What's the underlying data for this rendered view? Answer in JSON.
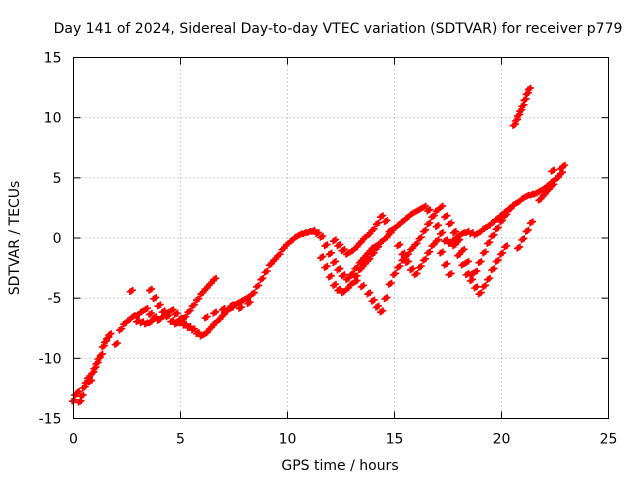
{
  "chart_data": {
    "type": "scatter",
    "title": "Day 141 of 2024, Sidereal Day-to-day VTEC variation (SDTVAR) for receiver p779",
    "xlabel": "GPS time / hours",
    "ylabel": "SDTVAR / TECUs",
    "xlim": [
      0,
      25
    ],
    "ylim": [
      -15,
      15
    ],
    "xticks": [
      "0",
      "5",
      "10",
      "15",
      "20",
      "25"
    ],
    "yticks": [
      "-15",
      "-10",
      "-5",
      "0",
      "5",
      "10",
      "15"
    ],
    "grid": true,
    "legend": "none",
    "marker": "plus",
    "color": "#ff0000",
    "series": [
      {
        "values": [
          [
            0.0,
            -13.5
          ],
          [
            0.1,
            -13.0
          ],
          [
            0.2,
            -12.8
          ],
          [
            0.3,
            -13.6
          ],
          [
            0.4,
            -13.1
          ],
          [
            0.5,
            -12.4
          ],
          [
            0.6,
            -12.0
          ],
          [
            0.7,
            -11.6
          ],
          [
            0.8,
            -11.9
          ],
          [
            0.9,
            -11.2
          ],
          [
            1.0,
            -10.8
          ],
          [
            1.1,
            -10.4
          ],
          [
            1.2,
            -10.0
          ],
          [
            1.3,
            -9.7
          ],
          [
            1.4,
            -9.0
          ],
          [
            1.5,
            -8.6
          ],
          [
            1.6,
            -8.3
          ],
          [
            1.7,
            -8.0
          ],
          [
            2.0,
            -8.8
          ],
          [
            2.2,
            -7.6
          ],
          [
            2.4,
            -7.1
          ],
          [
            2.6,
            -6.8
          ],
          [
            2.7,
            -4.4
          ],
          [
            2.8,
            -6.5
          ],
          [
            3.0,
            -6.4
          ],
          [
            3.2,
            -6.1
          ],
          [
            3.4,
            -5.9
          ],
          [
            3.6,
            -6.3
          ],
          [
            3.8,
            -6.6
          ],
          [
            4.0,
            -6.8
          ],
          [
            4.2,
            -6.5
          ],
          [
            4.4,
            -6.2
          ],
          [
            4.6,
            -6.0
          ],
          [
            4.8,
            -6.3
          ],
          [
            5.0,
            -6.7
          ],
          [
            5.2,
            -7.2
          ],
          [
            5.4,
            -7.4
          ],
          [
            5.6,
            -7.6
          ],
          [
            5.8,
            -7.9
          ],
          [
            6.0,
            -8.1
          ],
          [
            6.2,
            -7.9
          ],
          [
            6.4,
            -7.5
          ],
          [
            6.6,
            -7.1
          ],
          [
            6.8,
            -6.8
          ],
          [
            7.0,
            -6.4
          ],
          [
            7.2,
            -6.0
          ],
          [
            7.4,
            -5.8
          ],
          [
            7.6,
            -5.5
          ],
          [
            7.8,
            -5.3
          ],
          [
            8.0,
            -5.1
          ],
          [
            8.2,
            -4.9
          ],
          [
            8.4,
            -4.6
          ],
          [
            8.6,
            -4.0
          ],
          [
            8.8,
            -3.4
          ],
          [
            9.0,
            -2.8
          ],
          [
            9.2,
            -2.2
          ],
          [
            9.4,
            -1.8
          ],
          [
            9.6,
            -1.4
          ],
          [
            9.8,
            -0.9
          ],
          [
            10.0,
            -0.5
          ],
          [
            10.2,
            -0.2
          ],
          [
            10.4,
            0.1
          ],
          [
            10.6,
            0.3
          ],
          [
            10.8,
            0.4
          ],
          [
            11.0,
            0.5
          ],
          [
            11.2,
            0.6
          ],
          [
            11.4,
            0.4
          ],
          [
            11.6,
            0.1
          ],
          [
            11.8,
            -0.6
          ],
          [
            12.0,
            -1.3
          ],
          [
            12.2,
            -2.0
          ],
          [
            12.4,
            -2.6
          ],
          [
            12.6,
            -3.1
          ],
          [
            12.8,
            -3.4
          ],
          [
            13.0,
            -3.0
          ],
          [
            13.2,
            -2.5
          ],
          [
            13.4,
            -2.0
          ],
          [
            13.6,
            -1.6
          ],
          [
            13.8,
            -1.2
          ],
          [
            14.0,
            -0.8
          ],
          [
            14.2,
            -0.6
          ],
          [
            14.4,
            -0.3
          ],
          [
            14.6,
            0.0
          ],
          [
            14.8,
            0.4
          ],
          [
            15.0,
            0.8
          ],
          [
            15.2,
            1.1
          ],
          [
            15.4,
            1.4
          ],
          [
            15.6,
            1.7
          ],
          [
            15.8,
            2.0
          ],
          [
            16.0,
            2.2
          ],
          [
            16.2,
            2.4
          ],
          [
            16.4,
            2.6
          ],
          [
            16.6,
            2.3
          ],
          [
            16.8,
            1.8
          ],
          [
            17.0,
            1.0
          ],
          [
            17.2,
            0.4
          ],
          [
            17.4,
            -0.2
          ],
          [
            17.6,
            -0.4
          ],
          [
            17.8,
            -0.1
          ],
          [
            18.0,
            0.2
          ],
          [
            18.2,
            0.4
          ],
          [
            18.4,
            0.5
          ],
          [
            18.6,
            0.4
          ],
          [
            18.8,
            0.3
          ],
          [
            19.0,
            0.5
          ],
          [
            19.2,
            0.8
          ],
          [
            19.4,
            1.0
          ],
          [
            19.6,
            1.3
          ],
          [
            19.8,
            1.6
          ],
          [
            20.0,
            1.9
          ],
          [
            20.2,
            2.2
          ],
          [
            20.4,
            2.5
          ],
          [
            20.6,
            2.8
          ],
          [
            20.8,
            3.0
          ],
          [
            21.0,
            3.3
          ],
          [
            21.2,
            3.5
          ],
          [
            21.4,
            3.6
          ],
          [
            21.6,
            3.7
          ],
          [
            21.8,
            3.9
          ],
          [
            22.0,
            4.1
          ],
          [
            22.2,
            4.4
          ],
          [
            22.4,
            4.7
          ],
          [
            22.6,
            5.0
          ],
          [
            22.8,
            5.4
          ]
        ]
      },
      {
        "values": [
          [
            3.6,
            -4.3
          ],
          [
            3.8,
            -5.0
          ],
          [
            4.0,
            -5.6
          ],
          [
            4.2,
            -6.1
          ],
          [
            4.4,
            -6.5
          ],
          [
            4.6,
            -6.9
          ],
          [
            4.8,
            -7.1
          ],
          [
            5.0,
            -7.0
          ],
          [
            5.2,
            -6.6
          ],
          [
            5.4,
            -6.1
          ],
          [
            5.6,
            -5.6
          ],
          [
            5.8,
            -5.1
          ],
          [
            6.0,
            -4.6
          ],
          [
            6.2,
            -4.2
          ],
          [
            6.4,
            -3.8
          ],
          [
            6.6,
            -3.4
          ],
          [
            3.0,
            -6.9
          ],
          [
            3.2,
            -7.0
          ],
          [
            3.4,
            -7.1
          ],
          [
            3.6,
            -7.0
          ],
          [
            6.2,
            -6.6
          ],
          [
            6.6,
            -6.2
          ],
          [
            7.0,
            -5.9
          ],
          [
            7.4,
            -5.6
          ],
          [
            7.8,
            -5.8
          ],
          [
            8.2,
            -5.4
          ]
        ]
      },
      {
        "values": [
          [
            11.6,
            -1.6
          ],
          [
            11.8,
            -2.4
          ],
          [
            12.0,
            -3.2
          ],
          [
            12.2,
            -3.9
          ],
          [
            12.4,
            -4.3
          ],
          [
            12.6,
            -4.5
          ],
          [
            12.8,
            -4.2
          ],
          [
            13.0,
            -3.8
          ],
          [
            13.2,
            -3.2
          ],
          [
            13.4,
            -2.6
          ],
          [
            13.6,
            -2.2
          ],
          [
            13.8,
            -1.8
          ],
          [
            14.0,
            -1.3
          ],
          [
            14.2,
            -0.8
          ],
          [
            14.4,
            -0.3
          ],
          [
            12.2,
            -0.2
          ],
          [
            12.4,
            -0.6
          ],
          [
            12.6,
            -1.0
          ],
          [
            12.8,
            -1.3
          ],
          [
            13.0,
            -1.1
          ],
          [
            13.2,
            -0.8
          ],
          [
            13.4,
            -0.4
          ],
          [
            13.6,
            0.0
          ],
          [
            13.8,
            0.3
          ],
          [
            14.0,
            0.7
          ],
          [
            14.2,
            1.2
          ],
          [
            14.4,
            1.8
          ],
          [
            14.6,
            1.4
          ],
          [
            14.8,
            0.6
          ],
          [
            13.2,
            -3.6
          ],
          [
            13.5,
            -4.0
          ],
          [
            13.8,
            -4.6
          ],
          [
            14.0,
            -5.2
          ],
          [
            14.2,
            -5.7
          ],
          [
            14.4,
            -6.1
          ],
          [
            14.6,
            -5.0
          ],
          [
            14.8,
            -3.8
          ],
          [
            15.0,
            -3.0
          ],
          [
            15.2,
            -2.4
          ],
          [
            15.4,
            -1.8
          ],
          [
            15.6,
            -1.4
          ],
          [
            15.8,
            -0.9
          ],
          [
            16.0,
            -0.5
          ],
          [
            16.2,
            0.0
          ],
          [
            16.4,
            0.6
          ],
          [
            16.6,
            1.2
          ],
          [
            16.8,
            1.8
          ],
          [
            17.0,
            2.3
          ],
          [
            17.2,
            2.6
          ],
          [
            17.4,
            1.8
          ],
          [
            17.6,
            1.2
          ],
          [
            17.8,
            0.5
          ],
          [
            18.0,
            -0.2
          ],
          [
            18.2,
            -1.0
          ],
          [
            18.4,
            -2.0
          ],
          [
            18.6,
            -3.0
          ],
          [
            18.8,
            -4.1
          ],
          [
            19.0,
            -4.6
          ],
          [
            19.2,
            -4.0
          ],
          [
            19.4,
            -3.4
          ],
          [
            19.6,
            -2.6
          ],
          [
            19.8,
            -1.9
          ],
          [
            20.0,
            -1.3
          ],
          [
            20.2,
            -0.7
          ],
          [
            15.2,
            -0.6
          ],
          [
            15.4,
            -1.3
          ],
          [
            15.6,
            -2.0
          ],
          [
            15.8,
            -2.6
          ],
          [
            16.0,
            -3.0
          ],
          [
            16.2,
            -2.4
          ],
          [
            16.4,
            -1.8
          ],
          [
            16.6,
            -1.2
          ],
          [
            16.8,
            -0.6
          ],
          [
            17.0,
            -0.2
          ],
          [
            17.2,
            -1.2
          ],
          [
            17.4,
            -2.2
          ],
          [
            17.6,
            -3.0
          ],
          [
            17.8,
            -0.6
          ],
          [
            18.0,
            -1.4
          ],
          [
            18.2,
            -2.2
          ],
          [
            18.4,
            -3.0
          ],
          [
            18.6,
            -3.5
          ],
          [
            18.8,
            -2.8
          ],
          [
            19.0,
            -2.0
          ],
          [
            19.2,
            -1.2
          ],
          [
            19.4,
            -0.4
          ],
          [
            19.6,
            0.2
          ],
          [
            19.8,
            0.8
          ],
          [
            20.0,
            1.4
          ],
          [
            20.2,
            1.9
          ],
          [
            20.4,
            2.4
          ],
          [
            20.8,
            -0.8
          ],
          [
            21.0,
            -0.1
          ],
          [
            21.2,
            0.6
          ],
          [
            21.4,
            1.3
          ]
        ]
      },
      {
        "values": [
          [
            20.6,
            9.4
          ],
          [
            20.7,
            9.8
          ],
          [
            20.8,
            10.2
          ],
          [
            20.9,
            10.6
          ],
          [
            21.0,
            11.0
          ],
          [
            21.1,
            11.5
          ],
          [
            21.2,
            12.0
          ],
          [
            21.3,
            12.4
          ],
          [
            21.8,
            3.2
          ],
          [
            22.0,
            3.6
          ],
          [
            22.2,
            4.0
          ],
          [
            22.4,
            4.4
          ],
          [
            22.6,
            5.0
          ],
          [
            22.8,
            5.8
          ],
          [
            22.9,
            6.0
          ],
          [
            22.4,
            5.6
          ]
        ]
      }
    ]
  }
}
